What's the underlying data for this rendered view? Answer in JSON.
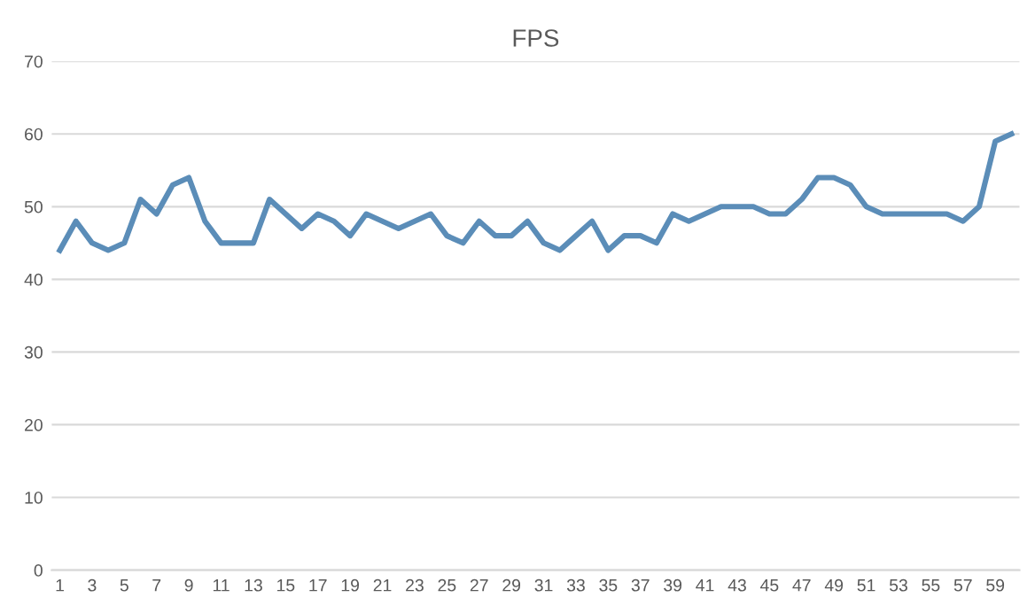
{
  "chart_data": {
    "type": "line",
    "title": "FPS",
    "categories": [
      "1",
      null,
      "3",
      null,
      "5",
      null,
      "7",
      null,
      "9",
      null,
      "11",
      null,
      "13",
      null,
      "15",
      null,
      "17",
      null,
      "19",
      null,
      "21",
      null,
      "23",
      null,
      "25",
      null,
      "27",
      null,
      "29",
      null,
      "31",
      null,
      "33",
      null,
      "35",
      null,
      "37",
      null,
      "39",
      null,
      "41",
      null,
      "43",
      null,
      "45",
      null,
      "47",
      null,
      "49",
      null,
      "51",
      null,
      "53",
      null,
      "55",
      null,
      "57",
      null,
      "59",
      null
    ],
    "series": [
      {
        "color": "#5b8db8",
        "values": [
          44,
          48,
          45,
          44,
          45,
          51,
          49,
          53,
          54,
          48,
          45,
          45,
          45,
          51,
          49,
          47,
          49,
          48,
          46,
          49,
          48,
          47,
          48,
          49,
          46,
          45,
          48,
          46,
          46,
          48,
          45,
          44,
          46,
          48,
          44,
          46,
          46,
          45,
          49,
          48,
          49,
          50,
          50,
          50,
          49,
          49,
          51,
          54,
          54,
          53,
          50,
          49,
          49,
          49,
          49,
          49,
          48,
          50,
          59,
          60
        ]
      }
    ],
    "ylim": [
      0,
      70
    ],
    "yticks": [
      0,
      10,
      20,
      30,
      40,
      50,
      60,
      70
    ],
    "grid": "y",
    "legend": false,
    "marker": "none",
    "line_style": "solid"
  }
}
